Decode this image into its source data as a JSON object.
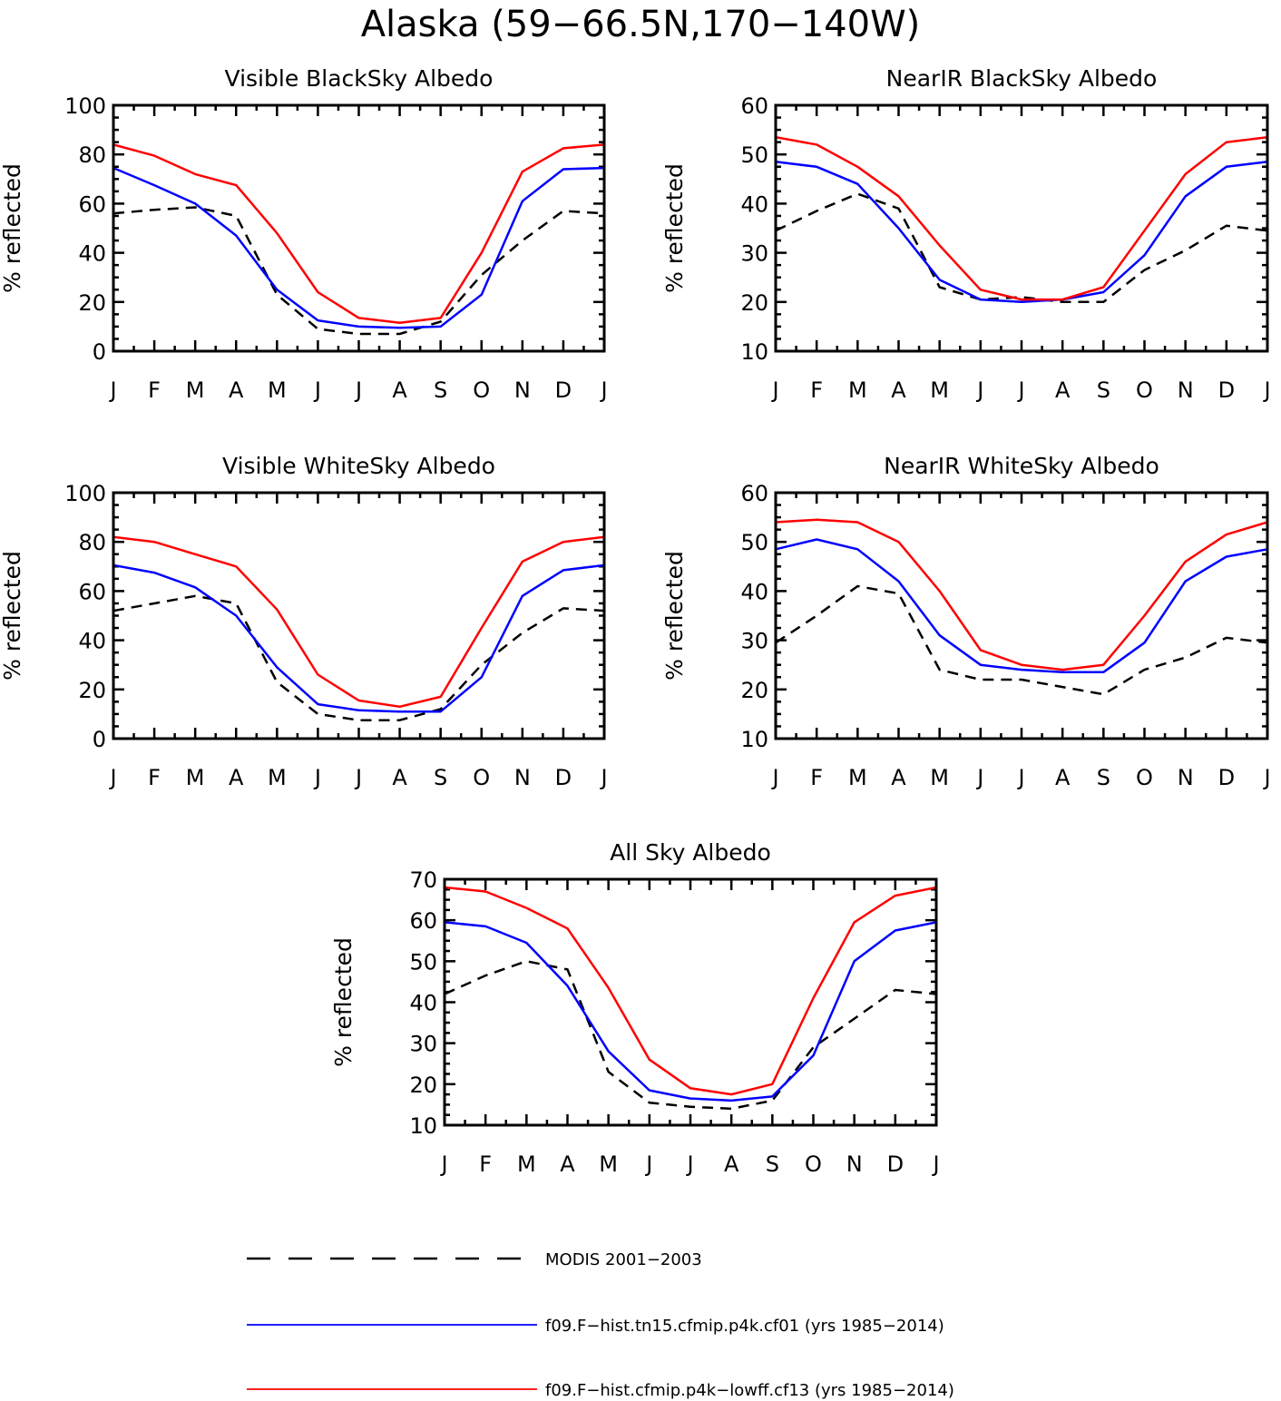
{
  "figure": {
    "title": "Alaska (59−66.5N,170−140W)"
  },
  "chart_data": [
    {
      "type": "line",
      "title": "Visible BlackSky Albedo",
      "ylabel": "% reflected",
      "xlabel": "",
      "categories": [
        "J",
        "F",
        "M",
        "A",
        "M",
        "J",
        "J",
        "A",
        "S",
        "O",
        "N",
        "D",
        "J"
      ],
      "ylim": [
        0,
        100
      ],
      "yticks": [
        0,
        20,
        40,
        60,
        80,
        100
      ],
      "series": [
        {
          "name": "MODIS 2001−2003",
          "values": [
            56,
            57.5,
            58.5,
            55,
            23,
            9,
            7,
            7,
            12,
            31,
            45,
            57,
            56
          ]
        },
        {
          "name": "f09.F−hist.tn15.cfmip.p4k.cf01 (yrs 1985−2014)",
          "values": [
            74.5,
            67.5,
            60,
            47,
            25,
            12.5,
            10,
            9.5,
            10,
            23,
            61,
            74,
            74.5
          ]
        },
        {
          "name": "f09.F−hist.cfmip.p4k−lowff.cf13 (yrs 1985−2014)",
          "values": [
            84,
            79.5,
            72,
            67.5,
            48,
            24,
            13.5,
            11.5,
            13.5,
            40,
            73,
            82.5,
            84
          ]
        }
      ]
    },
    {
      "type": "line",
      "title": "NearIR BlackSky Albedo",
      "ylabel": "% reflected",
      "xlabel": "",
      "categories": [
        "J",
        "F",
        "M",
        "A",
        "M",
        "J",
        "J",
        "A",
        "S",
        "O",
        "N",
        "D",
        "J"
      ],
      "ylim": [
        10,
        60
      ],
      "yticks": [
        10,
        20,
        30,
        40,
        50,
        60
      ],
      "series": [
        {
          "name": "MODIS 2001−2003",
          "values": [
            34.5,
            38.5,
            42,
            39,
            23,
            20.5,
            21,
            20,
            20,
            26.5,
            30.5,
            35.5,
            34.5
          ]
        },
        {
          "name": "f09.F−hist.tn15.cfmip.p4k.cf01 (yrs 1985−2014)",
          "values": [
            48.5,
            47.5,
            44,
            35,
            24.5,
            20.5,
            20,
            20.5,
            22,
            29.5,
            41.5,
            47.5,
            48.5
          ]
        },
        {
          "name": "f09.F−hist.cfmip.p4k−lowff.cf13 (yrs 1985−2014)",
          "values": [
            53.5,
            52,
            47.5,
            41.5,
            31.5,
            22.5,
            20.5,
            20.5,
            23,
            34.5,
            46,
            52.5,
            53.5
          ]
        }
      ]
    },
    {
      "type": "line",
      "title": "Visible WhiteSky Albedo",
      "ylabel": "% reflected",
      "xlabel": "",
      "categories": [
        "J",
        "F",
        "M",
        "A",
        "M",
        "J",
        "J",
        "A",
        "S",
        "O",
        "N",
        "D",
        "J"
      ],
      "ylim": [
        0,
        100
      ],
      "yticks": [
        0,
        20,
        40,
        60,
        80,
        100
      ],
      "series": [
        {
          "name": "MODIS 2001−2003",
          "values": [
            52,
            55,
            58,
            55,
            23,
            10,
            7.5,
            7.5,
            12,
            30,
            43,
            53,
            52
          ]
        },
        {
          "name": "f09.F−hist.tn15.cfmip.p4k.cf01 (yrs 1985−2014)",
          "values": [
            70.5,
            67.5,
            61.5,
            50,
            29,
            14,
            11.5,
            11,
            11,
            25,
            58,
            68.5,
            70.5
          ]
        },
        {
          "name": "f09.F−hist.cfmip.p4k−lowff.cf13 (yrs 1985−2014)",
          "values": [
            82,
            80,
            75,
            70,
            52.5,
            26,
            15.5,
            13,
            17,
            45,
            72,
            80,
            82
          ]
        }
      ]
    },
    {
      "type": "line",
      "title": "NearIR WhiteSky Albedo",
      "ylabel": "% reflected",
      "xlabel": "",
      "categories": [
        "J",
        "F",
        "M",
        "A",
        "M",
        "J",
        "J",
        "A",
        "S",
        "O",
        "N",
        "D",
        "J"
      ],
      "ylim": [
        10,
        60
      ],
      "yticks": [
        10,
        20,
        30,
        40,
        50,
        60
      ],
      "series": [
        {
          "name": "MODIS 2001−2003",
          "values": [
            29.5,
            35,
            41,
            39.5,
            24,
            22,
            22,
            20.5,
            19,
            24,
            26.5,
            30.5,
            29.5
          ]
        },
        {
          "name": "f09.F−hist.tn15.cfmip.p4k.cf01 (yrs 1985−2014)",
          "values": [
            48.5,
            50.5,
            48.5,
            42,
            31,
            25,
            24,
            23.5,
            23.5,
            29.5,
            42,
            47,
            48.5
          ]
        },
        {
          "name": "f09.F−hist.cfmip.p4k−lowff.cf13 (yrs 1985−2014)",
          "values": [
            54,
            54.5,
            54,
            50,
            40,
            28,
            25,
            24,
            25,
            35,
            46,
            51.5,
            54
          ]
        }
      ]
    },
    {
      "type": "line",
      "title": "All Sky Albedo",
      "ylabel": "% reflected",
      "xlabel": "",
      "categories": [
        "J",
        "F",
        "M",
        "A",
        "M",
        "J",
        "J",
        "A",
        "S",
        "O",
        "N",
        "D",
        "J"
      ],
      "ylim": [
        10,
        70
      ],
      "yticks": [
        10,
        20,
        30,
        40,
        50,
        60,
        70
      ],
      "series": [
        {
          "name": "MODIS 2001−2003",
          "values": [
            42,
            46.5,
            50,
            48,
            23,
            15.5,
            14.5,
            14,
            16,
            29,
            36,
            43,
            42
          ]
        },
        {
          "name": "f09.F−hist.tn15.cfmip.p4k.cf01 (yrs 1985−2014)",
          "values": [
            59.5,
            58.5,
            54.5,
            44,
            28,
            18.5,
            16.5,
            16,
            17,
            27,
            50,
            57.5,
            59.5
          ]
        },
        {
          "name": "f09.F−hist.cfmip.p4k−lowff.cf13 (yrs 1985−2014)",
          "values": [
            68,
            67,
            63,
            58,
            43.5,
            26,
            19,
            17.5,
            20,
            41,
            59.5,
            66,
            68
          ]
        }
      ]
    }
  ],
  "series_styles": [
    {
      "color": "#000000",
      "dashed": true
    },
    {
      "color": "#0000ff",
      "dashed": false
    },
    {
      "color": "#ff0000",
      "dashed": false
    }
  ],
  "legend": {
    "placement": "bottom",
    "entries": [
      "MODIS 2001−2003",
      "f09.F−hist.tn15.cfmip.p4k.cf01 (yrs 1985−2014)",
      "f09.F−hist.cfmip.p4k−lowff.cf13 (yrs 1985−2014)"
    ]
  }
}
